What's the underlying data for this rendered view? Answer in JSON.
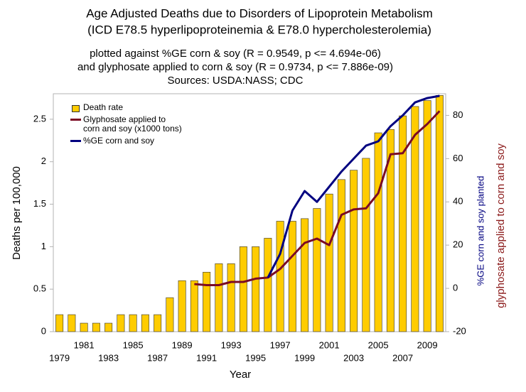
{
  "chart_data": {
    "type": "bar",
    "title": [
      "Age Adjusted Deaths due to Disorders of Lipoprotein Metabolism",
      "(ICD E78.5 hyperlipoproteinemia & E78.0 hypercholesterolemia)"
    ],
    "subtitle": [
      "plotted against %GE corn & soy (R = 0.9549, p <= 4.694e-06)",
      "and glyphosate applied to corn & soy (R = 0.9734, p <= 7.886e-09)",
      "Sources: USDA:NASS; CDC"
    ],
    "x_label": "Year",
    "y_label": "Deaths per 100,000",
    "y2_labels": [
      {
        "text": "%GE corn and soy planted",
        "color": "#000080"
      },
      {
        "text": "glyphosate applied to corn and soy",
        "color": "#8b1a1a"
      }
    ],
    "categories": [
      "1979",
      null,
      "1981",
      null,
      "1983",
      null,
      "1985",
      null,
      "1987",
      null,
      "1989",
      null,
      "1991",
      null,
      "1993",
      null,
      "1995",
      null,
      "1997",
      null,
      "1999",
      null,
      "2001",
      null,
      "2003",
      null,
      "2005",
      null,
      "2007",
      null,
      "2009",
      null
    ],
    "series": [
      {
        "name": "Death rate",
        "type": "bar",
        "axis": "y",
        "color": "#ffcc00",
        "values": [
          0.2,
          0.2,
          0.1,
          0.1,
          0.1,
          0.2,
          0.2,
          0.2,
          0.2,
          0.4,
          0.6,
          0.6,
          0.7,
          0.8,
          0.8,
          1.0,
          1.0,
          1.1,
          1.3,
          1.3,
          1.33,
          1.45,
          1.62,
          1.79,
          1.9,
          2.04,
          2.34,
          2.38,
          2.54,
          2.65,
          2.72,
          2.78
        ]
      },
      {
        "name": "Glyphosate applied to corn and soy (x1000 tons)",
        "type": "line",
        "axis": "y2",
        "color": "#7b0a24",
        "values": [
          null,
          null,
          null,
          null,
          null,
          null,
          null,
          null,
          null,
          null,
          null,
          2,
          1.5,
          1.5,
          3,
          3,
          4.5,
          5,
          9,
          15,
          21,
          23,
          20,
          34,
          36.5,
          37,
          44,
          62,
          62.5,
          71,
          76,
          82
        ]
      },
      {
        "name": "%GE corn and soy",
        "type": "line",
        "axis": "y2",
        "color": "#000080",
        "values": [
          null,
          null,
          null,
          null,
          null,
          null,
          null,
          null,
          null,
          null,
          null,
          null,
          null,
          null,
          null,
          null,
          null,
          5,
          16,
          36,
          45,
          40,
          47,
          54,
          60,
          66,
          68,
          75,
          80,
          86,
          88,
          89
        ]
      }
    ],
    "ylim": [
      0,
      2.8
    ],
    "yticks": [
      0,
      0.5,
      1,
      1.5,
      2,
      2.5
    ],
    "y2lim": [
      -20,
      90
    ],
    "y2ticks": [
      -20,
      0,
      20,
      40,
      60,
      80
    ],
    "grid": false,
    "legend": "top-left"
  }
}
